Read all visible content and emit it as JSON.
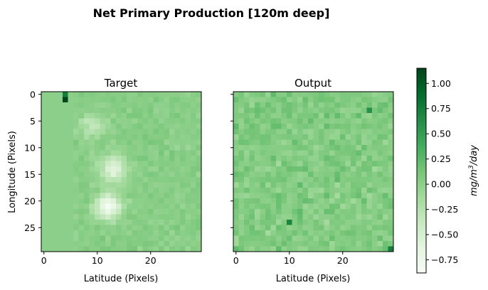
{
  "chart_data": {
    "type": "heatmap",
    "title": "Net Primary Production [120m deep]",
    "grid_size": [
      30,
      30
    ],
    "panels": [
      {
        "title": "Target",
        "xlabel": "Latitude (Pixels)",
        "ylabel": "Longitude (Pixels)",
        "x_ticks": [
          "0",
          "10",
          "20"
        ],
        "y_ticks": [
          "0",
          "5",
          "10",
          "15",
          "20",
          "25"
        ],
        "x_tick_values": [
          0,
          10,
          20
        ],
        "y_tick_values": [
          0,
          5,
          10,
          15,
          20,
          25
        ],
        "xlim": [
          -0.5,
          29.5
        ],
        "ylim": [
          29.5,
          -0.5
        ],
        "features": {
          "uniform_strip": {
            "columns": [
              0,
              5
            ],
            "value": 0.0
          },
          "bright_spots": [
            {
              "row": 1,
              "col": 4,
              "value": 1.15
            },
            {
              "row": 0,
              "col": 4,
              "value": 0.75
            }
          ],
          "light_patches": [
            {
              "row": 14,
              "col": 13,
              "value": -0.65
            },
            {
              "row": 21,
              "col": 12,
              "value": -0.85
            },
            {
              "row": 6,
              "col": 9,
              "value": -0.35
            }
          ]
        }
      },
      {
        "title": "Output",
        "xlabel": "Latitude (Pixels)",
        "ylabel": "",
        "x_ticks": [
          "0",
          "10",
          "20"
        ],
        "x_tick_values": [
          0,
          10,
          20
        ],
        "xlim": [
          -0.5,
          29.5
        ],
        "ylim": [
          29.5,
          -0.5
        ],
        "features": {
          "texture": "noisy",
          "mean_value": 0.05,
          "darker_cells": [
            {
              "row": 29,
              "col": 29,
              "value": 0.75
            },
            {
              "row": 24,
              "col": 10,
              "value": 0.7
            },
            {
              "row": 3,
              "col": 25,
              "value": 0.6
            }
          ]
        }
      }
    ],
    "colorbar": {
      "label": "mg/m³/day",
      "label_base": "mg/m",
      "label_sup": "3",
      "label_tail": "/day",
      "colormap": "Greens",
      "range": [
        -0.88,
        1.15
      ],
      "ticks": [
        1.0,
        0.75,
        0.5,
        0.25,
        0.0,
        -0.25,
        -0.5,
        -0.75
      ],
      "tick_labels": [
        "1.00",
        "0.75",
        "0.50",
        "0.25",
        "0.00",
        "−0.25",
        "−0.50",
        "−0.75"
      ]
    }
  }
}
